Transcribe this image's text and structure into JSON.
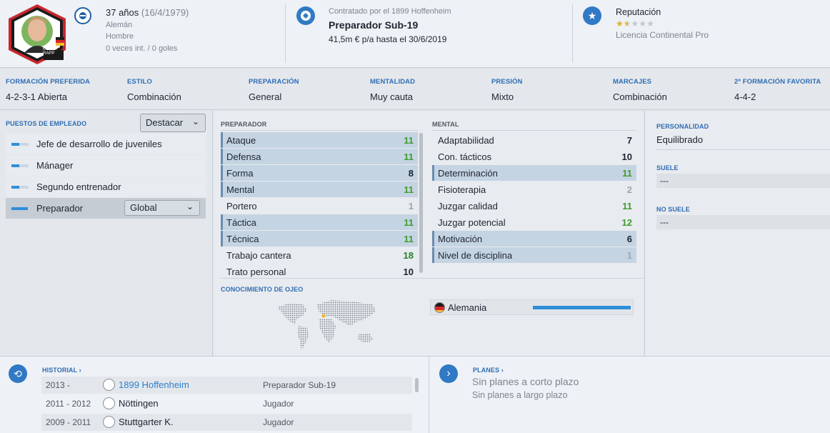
{
  "header": {
    "badge_caption": "Manuel\nRAPP",
    "age": "37 años",
    "dob": "(16/4/1979)",
    "nationality": "Alemán",
    "gender": "Hombre",
    "caps": "0 veces int. / 0 goles",
    "contract_caption": "Contratado por el 1899 Hoffenheim",
    "job_title": "Preparador Sub-19",
    "salary": "41,5m € p/a hasta el 30/6/2019",
    "reputation_label": "Reputación",
    "reputation_stars": 1.5,
    "reputation_max": 5,
    "license": "Licencia Continental Pro"
  },
  "prefs": [
    {
      "label": "FORMACIÓN PREFERIDA",
      "value": "4-2-3-1 Abierta"
    },
    {
      "label": "ESTILO",
      "value": "Combinación"
    },
    {
      "label": "PREPARACIÓN",
      "value": "General"
    },
    {
      "label": "MENTALIDAD",
      "value": "Muy cauta"
    },
    {
      "label": "PRESIÓN",
      "value": "Mixto"
    },
    {
      "label": "MARCAJES",
      "value": "Combinación"
    },
    {
      "label": "2ª FORMACIÓN FAVORITA",
      "value": "4-4-2"
    }
  ],
  "roles": {
    "title": "PUESTOS DE EMPLEADO",
    "highlight_select": "Destacar",
    "items": [
      {
        "label": "Jefe de desarrollo de juveniles",
        "fill": 0.45
      },
      {
        "label": "Mánager",
        "fill": 0.45
      },
      {
        "label": "Segundo entrenador",
        "fill": 0.45
      },
      {
        "label": "Preparador",
        "fill": 0.95
      }
    ],
    "selected_filter": "Global"
  },
  "preparador": {
    "title": "PREPARADOR",
    "attrs": [
      {
        "name": "Ataque",
        "value": "11"
      },
      {
        "name": "Defensa",
        "value": "11"
      },
      {
        "name": "Forma",
        "value": "8"
      },
      {
        "name": "Mental",
        "value": "11"
      },
      {
        "name": "Portero",
        "value": "1"
      },
      {
        "name": "Táctica",
        "value": "11"
      },
      {
        "name": "Técnica",
        "value": "11"
      },
      {
        "name": "Trabajo cantera",
        "value": "18"
      },
      {
        "name": "Trato personal",
        "value": "10"
      }
    ]
  },
  "mental": {
    "title": "MENTAL",
    "attrs": [
      {
        "name": "Adaptabilidad",
        "value": "7"
      },
      {
        "name": "Con. tácticos",
        "value": "10"
      },
      {
        "name": "Determinación",
        "value": "11"
      },
      {
        "name": "Fisioterapia",
        "value": "2"
      },
      {
        "name": "Juzgar calidad",
        "value": "11"
      },
      {
        "name": "Juzgar potencial",
        "value": "12"
      },
      {
        "name": "Motivación",
        "value": "6"
      },
      {
        "name": "Nivel de disciplina",
        "value": "1"
      }
    ]
  },
  "personality": {
    "title": "PERSONALIDAD",
    "value": "Equilibrado",
    "suele_title": "SUELE",
    "suele_value": "---",
    "no_suele_title": "NO SUELE",
    "no_suele_value": "---"
  },
  "scouting": {
    "title": "CONOCIMIENTO DE OJEO",
    "country": "Alemania",
    "knowledge": 1.0
  },
  "history": {
    "title": "HISTORIAL",
    "rows": [
      {
        "years": "2013 -",
        "club": "1899 Hoffenheim",
        "role": "Preparador Sub-19"
      },
      {
        "years": "2011 - 2012",
        "club": "Nöttingen",
        "role": "Jugador"
      },
      {
        "years": "2009 - 2011",
        "club": "Stuttgarter K.",
        "role": "Jugador"
      }
    ]
  },
  "plans": {
    "title": "PLANES",
    "short_term": "Sin planes a corto plazo",
    "long_term": "Sin planes a largo plazo"
  },
  "colors": {
    "accent": "#2f6db3",
    "green": "#3f9a2d",
    "highlight_row": "#c5d4e3",
    "bar": "#2f8fd8"
  }
}
